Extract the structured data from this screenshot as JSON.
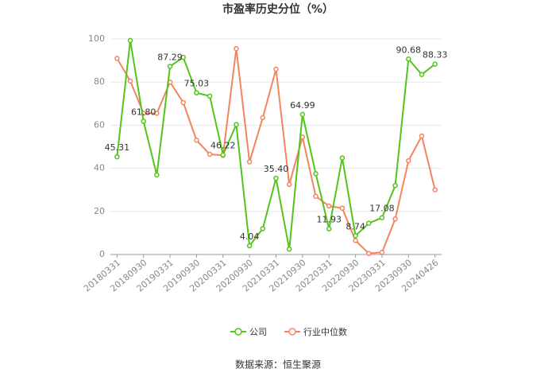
{
  "chart_data": {
    "type": "line",
    "title": "市盈率历史分位（%）",
    "categories": [
      "20180331",
      null,
      "20180930",
      null,
      "20190331",
      null,
      "20190930",
      null,
      "20200331",
      null,
      "20200930",
      null,
      "20210331",
      null,
      "20210930",
      null,
      "20220331",
      null,
      "20220930",
      null,
      "20230331",
      null,
      "20230930",
      null,
      "20240426"
    ],
    "series": [
      {
        "name": "公司",
        "color": "#52c41a",
        "values": [
          45.31,
          99.3,
          61.8,
          36.9,
          87.29,
          91.5,
          75.03,
          73.5,
          46.22,
          60.3,
          4.04,
          12,
          35.4,
          2.5,
          64.99,
          37.5,
          11.93,
          44.8,
          8.74,
          14.5,
          17.08,
          32,
          90.68,
          83.5,
          88.33
        ],
        "value_labels": [
          "45.31",
          null,
          "61.80",
          null,
          "87.29",
          null,
          "75.03",
          null,
          "46.22",
          null,
          "4.04",
          null,
          "35.40",
          null,
          "64.99",
          null,
          "11.93",
          null,
          "8.74",
          null,
          "17.08",
          null,
          "90.68",
          null,
          "88.33"
        ]
      },
      {
        "name": "行业中位数",
        "color": "#f4845f",
        "values": [
          91,
          80.5,
          65.5,
          65.5,
          80,
          70.5,
          53,
          46.5,
          46,
          95.5,
          43,
          63.5,
          86,
          32.5,
          54.5,
          27,
          22.5,
          21.5,
          6.5,
          0.5,
          1,
          16.5,
          43.5,
          55,
          30
        ]
      }
    ],
    "ylim": [
      0,
      100
    ],
    "yticks": [
      0,
      20,
      40,
      60,
      80,
      100
    ],
    "grid": true,
    "source": "数据来源：恒生聚源"
  }
}
